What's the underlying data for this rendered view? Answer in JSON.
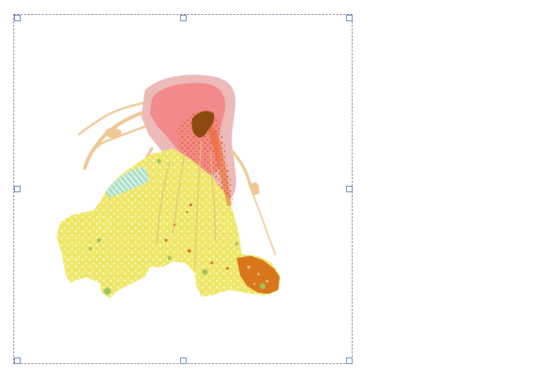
{
  "canvas": {
    "selection_frame": {
      "border_color": "#7a5a8a",
      "handle_color": "#3f6f9f",
      "handles": [
        "top-left",
        "top-center",
        "top-right",
        "middle-left",
        "middle-right",
        "bottom-left",
        "bottom-center",
        "bottom-right"
      ]
    }
  },
  "map": {
    "layers": [
      {
        "name": "outer-halo",
        "color": "#ebbab9"
      },
      {
        "name": "inner-zone",
        "color": "#f28a8c"
      },
      {
        "name": "summit-core",
        "color": "#8b4a0e"
      },
      {
        "name": "orange-flows",
        "color": "#e8672a"
      },
      {
        "name": "tan-lahar-channels",
        "color": "#efc894"
      },
      {
        "name": "yellow-apron",
        "color": "#efe86a"
      },
      {
        "name": "green-patches",
        "color": "#9fc55a"
      },
      {
        "name": "hatched-area",
        "color": "#8fd0b8"
      },
      {
        "name": "brown-orange-region",
        "color": "#d9761a"
      }
    ]
  }
}
